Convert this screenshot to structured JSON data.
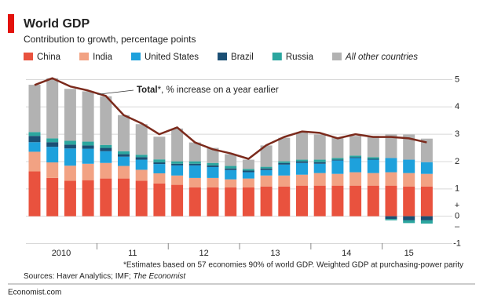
{
  "chart_data": {
    "type": "stacked-bar-line",
    "title": "World GDP",
    "subtitle": "Contribution to growth, percentage points",
    "categories": [
      "2010",
      null,
      null,
      null,
      "11",
      null,
      null,
      null,
      "12",
      null,
      null,
      null,
      "13",
      null,
      null,
      null,
      "14",
      null,
      null,
      null,
      "15",
      null,
      null
    ],
    "series": [
      {
        "name": "China",
        "color": "#e9523e",
        "values": [
          1.64,
          1.4,
          1.3,
          1.32,
          1.38,
          1.38,
          1.3,
          1.2,
          1.15,
          1.06,
          1.06,
          1.06,
          1.06,
          1.09,
          1.09,
          1.12,
          1.12,
          1.12,
          1.12,
          1.12,
          1.12,
          1.09,
          1.09
        ]
      },
      {
        "name": "India",
        "color": "#f2a283",
        "values": [
          0.72,
          0.57,
          0.55,
          0.6,
          0.57,
          0.46,
          0.4,
          0.37,
          0.34,
          0.34,
          0.34,
          0.29,
          0.32,
          0.4,
          0.4,
          0.4,
          0.46,
          0.43,
          0.49,
          0.46,
          0.49,
          0.49,
          0.46
        ]
      },
      {
        "name": "United States",
        "color": "#1ea1dc",
        "values": [
          0.35,
          0.57,
          0.63,
          0.55,
          0.43,
          0.34,
          0.37,
          0.34,
          0.37,
          0.46,
          0.4,
          0.34,
          0.23,
          0.2,
          0.4,
          0.43,
          0.34,
          0.49,
          0.52,
          0.49,
          0.52,
          0.49,
          0.43
        ]
      },
      {
        "name": "Brazil",
        "color": "#1b4f74",
        "values": [
          0.23,
          0.17,
          0.14,
          0.12,
          0.12,
          0.09,
          0.09,
          0.06,
          0.06,
          0.06,
          0.06,
          0.06,
          0.06,
          0.06,
          0.06,
          0.06,
          0.06,
          0.03,
          0.03,
          0.03,
          -0.1,
          -0.15,
          -0.15
        ]
      },
      {
        "name": "Russia",
        "color": "#2ba69f",
        "values": [
          0.14,
          0.14,
          0.14,
          0.14,
          0.11,
          0.11,
          0.09,
          0.11,
          0.09,
          0.09,
          0.09,
          0.09,
          0.06,
          0.06,
          0.06,
          0.06,
          0.09,
          0.06,
          0.06,
          0.06,
          -0.05,
          -0.1,
          -0.12
        ]
      },
      {
        "name": "All other countries",
        "color": "#b2b2b2",
        "values": [
          1.73,
          2.2,
          1.9,
          1.84,
          1.78,
          1.32,
          1.12,
          0.83,
          1.2,
          0.69,
          0.55,
          0.43,
          0.34,
          0.78,
          0.86,
          1.0,
          0.92,
          0.75,
          0.72,
          0.78,
          0.86,
          0.92,
          0.86
        ]
      }
    ],
    "line": {
      "name": "Total",
      "annotation": "*, % increase on a year earlier",
      "color": "#7b2a1c",
      "values": [
        4.8,
        5.05,
        4.75,
        4.6,
        4.4,
        3.7,
        3.4,
        3.0,
        3.25,
        2.7,
        2.45,
        2.3,
        2.1,
        2.6,
        2.9,
        3.1,
        3.05,
        2.85,
        3.0,
        2.9,
        2.9,
        2.85,
        2.7
      ]
    },
    "ylim": [
      -1.1,
      5.3
    ],
    "yticks": [
      5,
      4,
      3,
      2,
      1,
      0,
      -1
    ],
    "sign_labels": [
      "+",
      "–"
    ],
    "grid": true,
    "footnote": "*Estimates based on 57 economies 90% of world GDP. Weighted GDP at purchasing-power parity",
    "source_prefix": "Sources: Haver Analytics; IMF; ",
    "source_italic": "The Economist",
    "site": "Economist.com"
  }
}
